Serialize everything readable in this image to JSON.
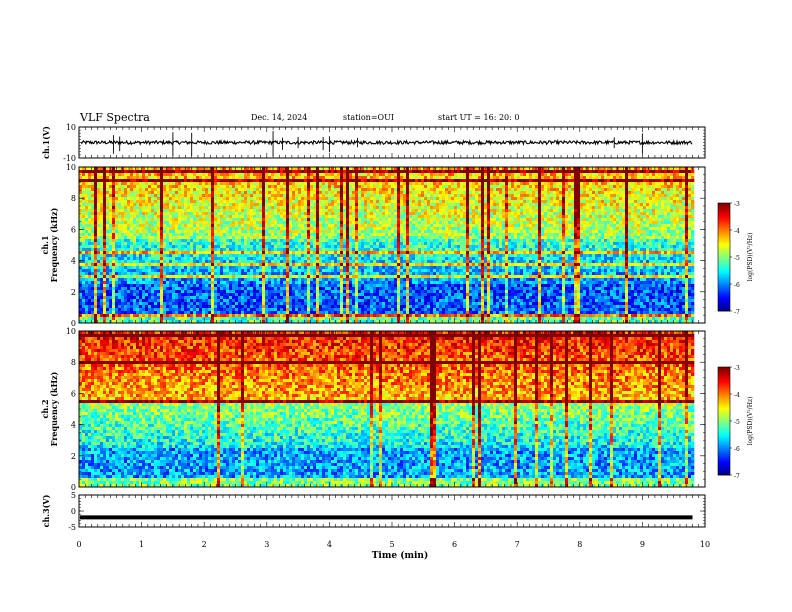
{
  "header": {
    "title": "VLF Spectra",
    "date": "Dec. 14, 2024",
    "station": "station=OUI",
    "start": "start  UT  =   16: 20: 0"
  },
  "chart_data": [
    {
      "type": "line",
      "name": "ch.1 waveform",
      "ylabel": "ch.1(V)",
      "ylim": [
        -10,
        10
      ],
      "yticks": [
        "10",
        "-10"
      ],
      "xlim": [
        0,
        10
      ],
      "signal_end_min": 9.8,
      "baseline_v": 0,
      "spikes_min": [
        0.55,
        0.65,
        1.5,
        1.8,
        3.1,
        3.25,
        3.5,
        3.9,
        4.0,
        4.45,
        8.55,
        9.0
      ]
    },
    {
      "type": "heatmap",
      "name": "ch.1 spectrogram",
      "ylabel": "Frequency (kHz)",
      "ylabel2": "ch.1",
      "ylim": [
        0,
        10
      ],
      "yticks": [
        "0",
        "2",
        "4",
        "6",
        "8",
        "10"
      ],
      "xlim": [
        0,
        10
      ],
      "signal_end_min": 9.8,
      "colorbar": {
        "label": "log(PSD)(V²/Hz)",
        "range": [
          -7,
          -3
        ],
        "ticks": [
          "-3",
          "-4",
          "-5",
          "-6",
          "-7"
        ]
      }
    },
    {
      "type": "heatmap",
      "name": "ch.2 spectrogram",
      "ylabel": "Frequency (kHz)",
      "ylabel2": "ch.2",
      "ylim": [
        0,
        10
      ],
      "yticks": [
        "0",
        "2",
        "4",
        "6",
        "8",
        "10"
      ],
      "xlim": [
        0,
        10
      ],
      "signal_end_min": 9.8,
      "colorbar": {
        "label": "log(PSD)(V²/Hz)",
        "range": [
          -7,
          -3
        ],
        "ticks": [
          "-3",
          "-4",
          "-5",
          "-6",
          "-7"
        ]
      }
    },
    {
      "type": "line",
      "name": "ch.3 waveform",
      "ylabel": "ch.3(V)",
      "ylim": [
        -5,
        5
      ],
      "yticks": [
        "5",
        "0",
        "-5"
      ],
      "xlim": [
        0,
        10
      ],
      "signal_end_min": 9.8,
      "value_v": -2
    }
  ],
  "xaxis": {
    "label": "Time (min)",
    "ticks": [
      "0",
      "1",
      "2",
      "3",
      "4",
      "5",
      "6",
      "7",
      "8",
      "9",
      "10"
    ]
  }
}
